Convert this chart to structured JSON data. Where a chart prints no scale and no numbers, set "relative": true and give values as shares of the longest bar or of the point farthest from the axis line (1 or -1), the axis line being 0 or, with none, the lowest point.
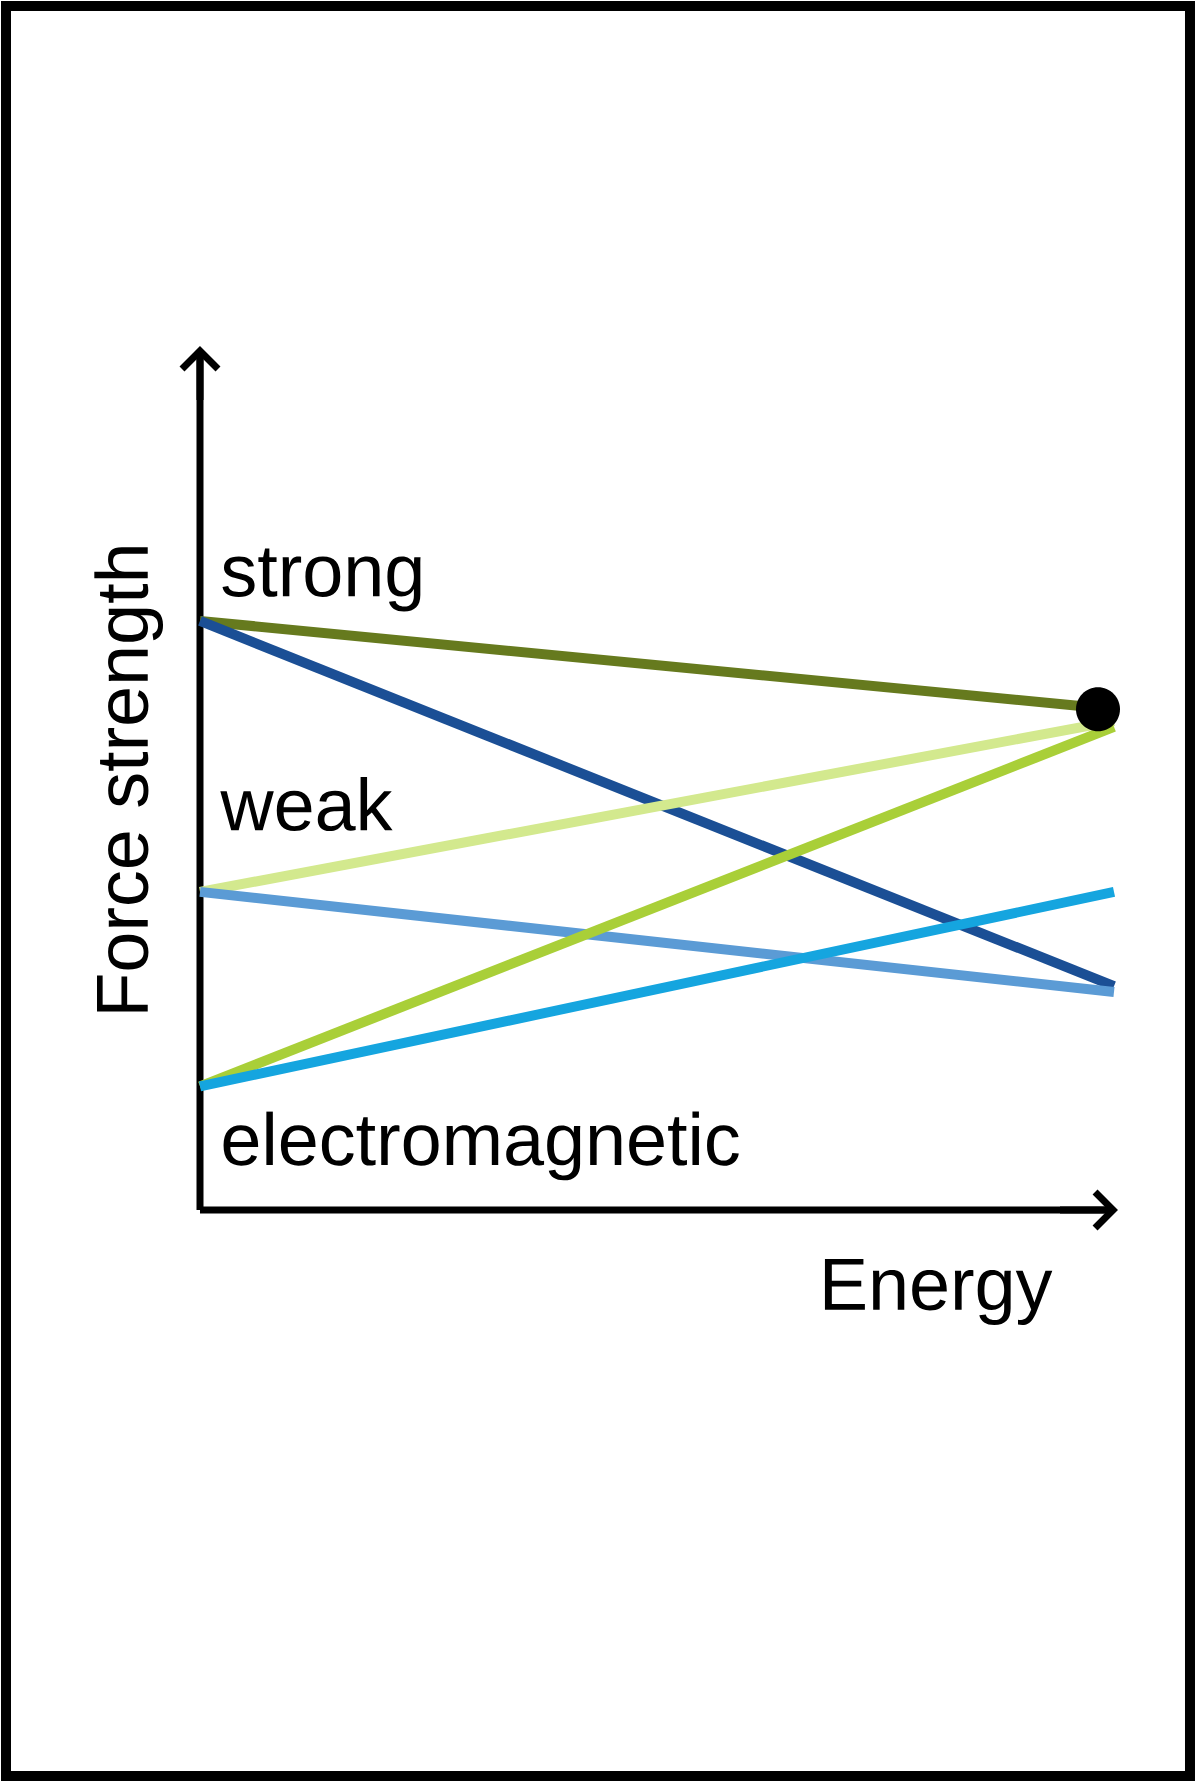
{
  "chart_data": {
    "type": "line",
    "relative": true,
    "xlabel": "Energy",
    "ylabel": "Force strength",
    "categories": [
      null,
      null
    ],
    "series": [
      {
        "color": "#667a1e",
        "values": [
          1,
          0.85
        ]
      },
      {
        "color": "#1b4f95",
        "values": [
          1,
          0.38
        ]
      },
      {
        "color": "#d3e98e",
        "values": [
          0.54,
          0.83
        ]
      },
      {
        "color": "#5b9bd5",
        "values": [
          0.54,
          0.37
        ]
      },
      {
        "color": "#a9cf38",
        "values": [
          0.21,
          0.82
        ]
      },
      {
        "color": "#15a5df",
        "values": [
          0.21,
          0.54
        ]
      }
    ],
    "annotations": [
      "strong",
      "weak",
      "electromagnetic"
    ]
  }
}
